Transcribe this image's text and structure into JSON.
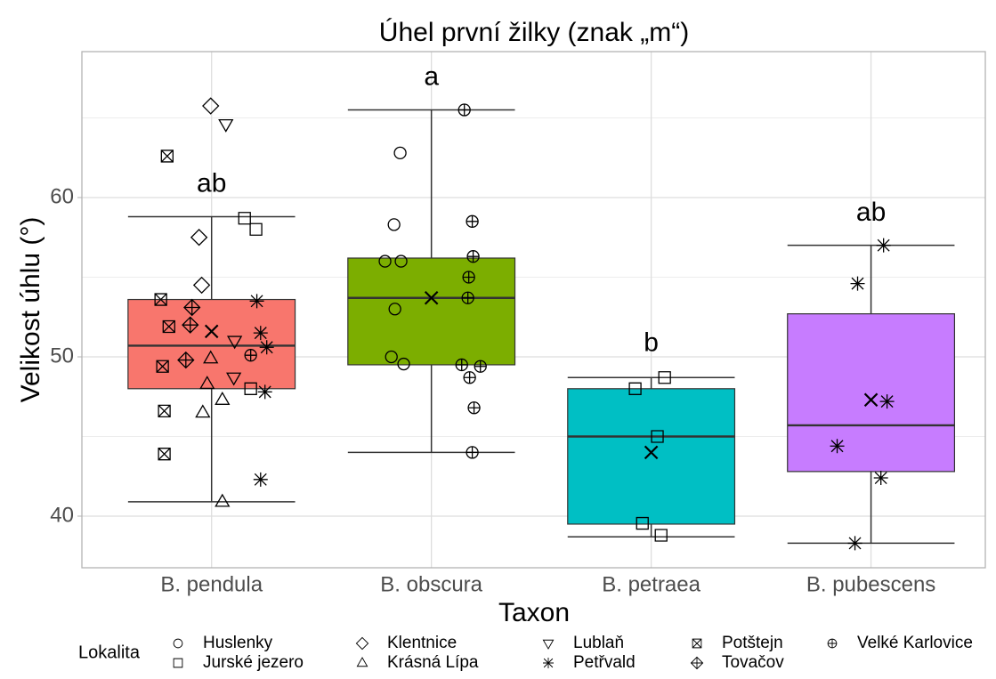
{
  "chart_data": {
    "type": "box",
    "title": "Úhel první žilky (znak „m“)",
    "x_label": "Taxon",
    "y_label": "Velikost úhlu (°)",
    "categories": [
      "B. pendula",
      "B. obscura",
      "B. petraea",
      "B. pubescens"
    ],
    "colors": [
      "#F8766D",
      "#7CAE00",
      "#00BFC4",
      "#C77CFF"
    ],
    "boxes": [
      {
        "whisker_low": 40.9,
        "q1": 48.0,
        "median": 50.7,
        "q3": 53.6,
        "whisker_high": 58.8,
        "mean": 51.6
      },
      {
        "whisker_low": 44.0,
        "q1": 49.5,
        "median": 53.7,
        "q3": 56.2,
        "whisker_high": 65.5,
        "mean": 53.7
      },
      {
        "whisker_low": 38.7,
        "q1": 39.5,
        "median": 45.0,
        "q3": 48.0,
        "whisker_high": 48.7,
        "mean": 44.0
      },
      {
        "whisker_low": 38.3,
        "q1": 42.8,
        "median": 45.7,
        "q3": 52.7,
        "whisker_high": 57.0,
        "mean": 47.3
      }
    ],
    "annotations": [
      {
        "text": "ab",
        "y": 60.8
      },
      {
        "text": "a",
        "y": 67.5
      },
      {
        "text": "b",
        "y": 50.8
      },
      {
        "text": "ab",
        "y": 59.0
      }
    ],
    "xlim": [
      0.41,
      4.52
    ],
    "ylim": [
      36.76,
      69.16
    ],
    "yticks": [
      40,
      50,
      60
    ],
    "yticks_minor": [
      45,
      55,
      65
    ],
    "grid": true,
    "legend_title": "Lokalita",
    "legend_position": "bottom",
    "series": [
      {
        "name": "Huslenky",
        "shape": "circle",
        "x": [
          1.858,
          1.83,
          1.789,
          1.862,
          1.834,
          1.818,
          1.874
        ],
        "values": [
          62.8,
          58.3,
          56.0,
          56.0,
          53.0,
          50.0,
          49.55
        ]
      },
      {
        "name": "Jurské jezero",
        "shape": "square",
        "x": [
          1.15,
          1.202,
          1.178,
          2.927,
          3.061,
          3.028,
          2.96,
          3.045
        ],
        "values": [
          58.7,
          58.0,
          48.0,
          48.0,
          48.7,
          45.0,
          39.55,
          38.8
        ]
      },
      {
        "name": "Klentnice",
        "shape": "diamond",
        "x": [
          0.996,
          0.943,
          0.955
        ],
        "values": [
          65.75,
          57.5,
          54.5
        ]
      },
      {
        "name": "Krásná Lípa",
        "shape": "triangle",
        "x": [
          0.996,
          0.98,
          1.049,
          0.96,
          1.049
        ],
        "values": [
          49.9,
          48.3,
          47.3,
          46.5,
          40.9
        ]
      },
      {
        "name": "Lublaň",
        "shape": "triangle-down",
        "x": [
          1.065,
          1.105,
          1.101
        ],
        "values": [
          64.6,
          51.0,
          48.7
        ]
      },
      {
        "name": "Petřvald",
        "shape": "asterisk",
        "x": [
          1.206,
          1.223,
          1.251,
          1.243,
          1.223,
          4.057,
          3.939,
          4.073,
          3.846,
          4.045,
          3.927
        ],
        "values": [
          53.5,
          51.5,
          50.6,
          47.8,
          42.3,
          57.0,
          54.6,
          47.2,
          44.4,
          42.4,
          38.3
        ]
      },
      {
        "name": "Potštejn",
        "shape": "square-x",
        "x": [
          0.798,
          0.769,
          0.806,
          0.777,
          0.785,
          0.785
        ],
        "values": [
          62.6,
          53.6,
          51.9,
          49.4,
          46.6,
          43.9
        ]
      },
      {
        "name": "Tovačov",
        "shape": "diamond-plus",
        "x": [
          0.911,
          0.903,
          0.883
        ],
        "values": [
          53.1,
          52.0,
          49.8
        ]
      },
      {
        "name": "Velké Karlovice",
        "shape": "circle-plus",
        "x": [
          1.178,
          2.15,
          2.186,
          2.19,
          2.17,
          2.166,
          2.138,
          2.223,
          2.174,
          2.194,
          2.186
        ],
        "values": [
          50.1,
          65.5,
          58.5,
          56.3,
          55.0,
          53.7,
          49.5,
          49.4,
          48.7,
          46.8,
          44.0
        ]
      }
    ]
  }
}
